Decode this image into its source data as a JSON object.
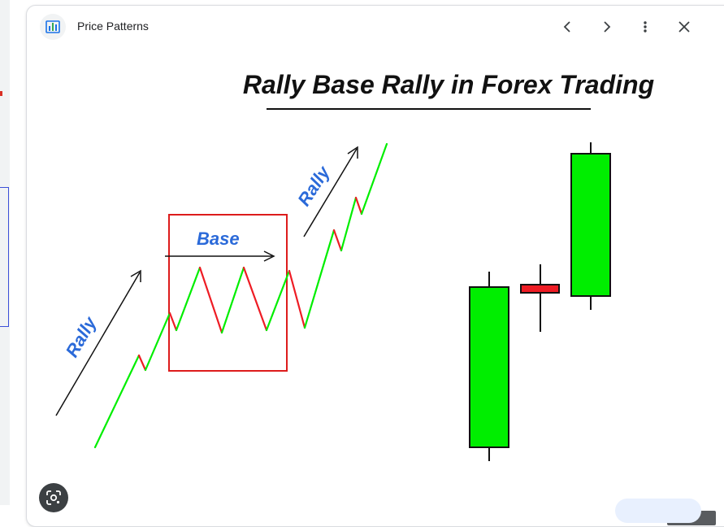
{
  "header": {
    "site_name": "Price Patterns",
    "site_icon": "bar-chart-logo-icon",
    "buttons": {
      "previous": "chevron-left-icon",
      "next": "chevron-right-icon",
      "more": "more-vert-icon",
      "close": "close-icon"
    }
  },
  "image": {
    "title": "Rally Base Rally in Forex Trading",
    "labels": {
      "rally_left": "Rally",
      "base": "Base",
      "rally_right": "Rally"
    },
    "dimensions": "1.024 × 651",
    "colors": {
      "bullish": "#00ee00",
      "bearish": "#ee1c24",
      "base_box": "#dd1c1c",
      "label_blue": "#2b6ad9"
    }
  },
  "lens_button": "google-lens-icon"
}
